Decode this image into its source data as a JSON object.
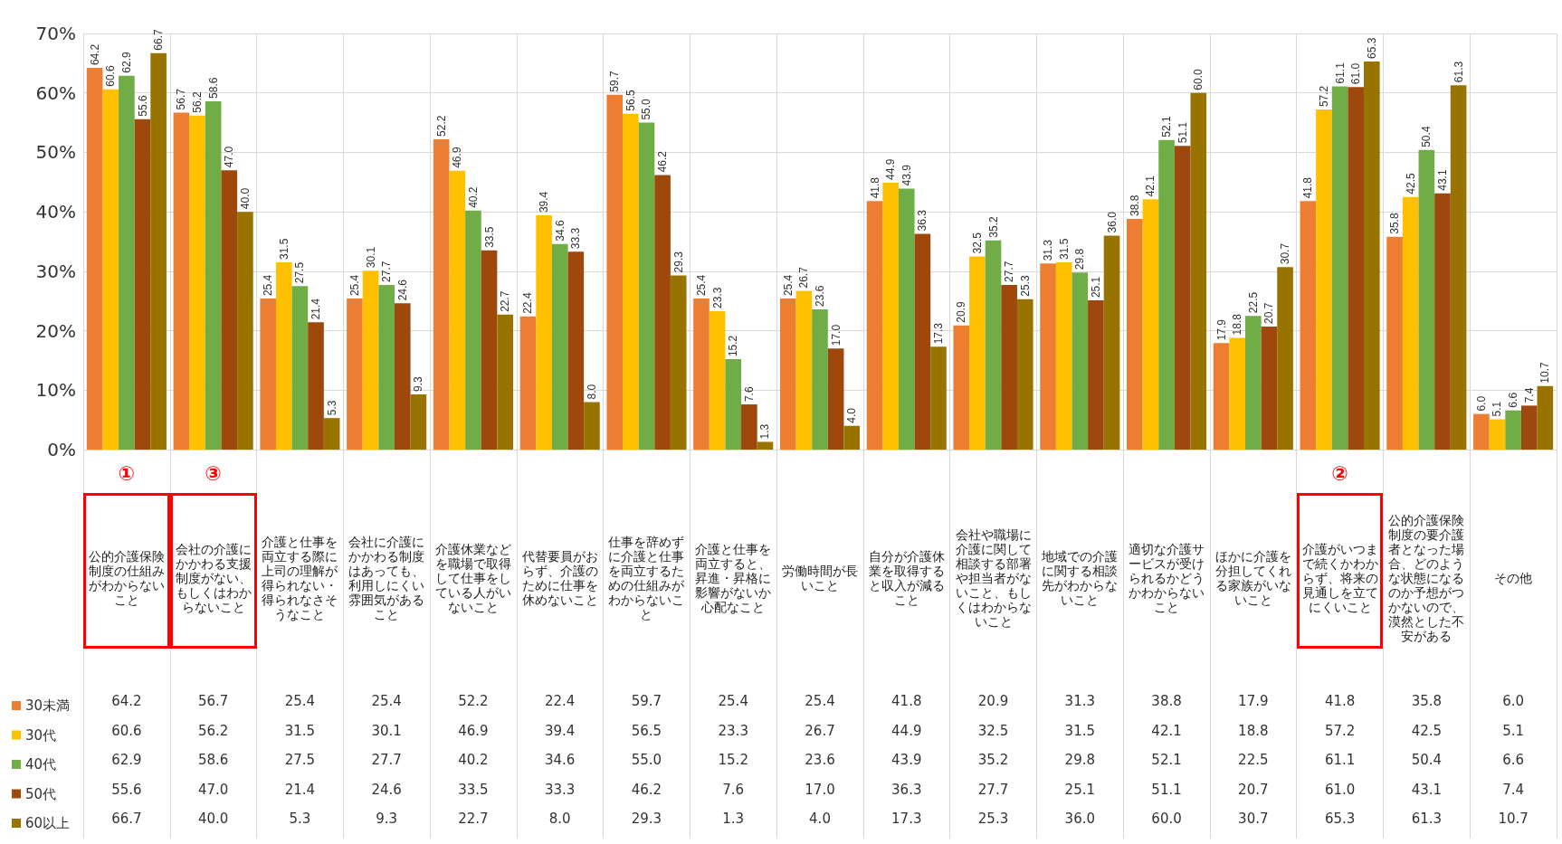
{
  "chart_data": {
    "type": "bar",
    "categories": [
      "公的介護保険制度の仕組みがわからないこと",
      "会社の介護にかかわる支援制度がない、もしくはわからないこと",
      "介護と仕事を両立する際に上司の理解が得られない・得られなさそうなこと",
      "会社に介護にかかわる制度はあっても、利用しにくい雰囲気があること",
      "介護休業などを職場で取得して仕事をしている人がいないこと",
      "代替要員がおらず、介護のために仕事を休めないこと",
      "仕事を辞めずに介護と仕事を両立するための仕組みがわからないこと",
      "介護と仕事を両立すると、昇進・昇格に影響がないか心配なこと",
      "労働時間が長いこと",
      "自分が介護休業を取得すると収入が減ること",
      "会社や職場に介護に関して相談する部署や担当者がないこと、もしくはわからないこと",
      "地域での介護に関する相談先がわからないこと",
      "適切な介護サービスが受けられるかどうかわからないこと",
      "ほかに介護を分担してくれる家族がいないこと",
      "介護がいつまで続くかわからず、将来の見通しを立てにくいこと",
      "公的介護保険制度の要介護者となった場合、どのような状態になるのか予想がつかないので、漠然とした不安がある",
      "その他"
    ],
    "series": [
      {
        "name": "30未満",
        "color": "#ed7d31",
        "values": [
          64.2,
          56.7,
          25.4,
          25.4,
          52.2,
          22.4,
          59.7,
          25.4,
          25.4,
          41.8,
          20.9,
          31.3,
          38.8,
          17.9,
          41.8,
          35.8,
          6.0
        ],
        "value_labels": [
          "64.2",
          "56.7",
          "25.4",
          "25.4",
          "52.2",
          "22.4",
          "59.7",
          "25.4",
          "25.4",
          "41.8",
          "20.9",
          "31.3",
          "38.8",
          "17.9",
          "41.8",
          "35.8",
          "6.0"
        ]
      },
      {
        "name": "30代",
        "color": "#ffc000",
        "values": [
          60.6,
          56.2,
          31.5,
          30.1,
          46.9,
          39.4,
          56.5,
          23.3,
          26.7,
          44.9,
          32.5,
          31.5,
          42.1,
          18.8,
          57.2,
          42.5,
          5.1
        ],
        "value_labels": [
          "60.6",
          "56.2",
          "31.5",
          "30.1",
          "46.9",
          "39.4",
          "56.5",
          "23.3",
          "26.7",
          "44.9",
          "32.5",
          "31.5",
          "42.1",
          "18.8",
          "57.2",
          "42.5",
          "5.1"
        ]
      },
      {
        "name": "40代",
        "color": "#70ad47",
        "values": [
          62.9,
          58.6,
          27.5,
          27.7,
          40.2,
          34.6,
          55.0,
          15.2,
          23.6,
          43.9,
          35.2,
          29.8,
          52.1,
          22.5,
          61.1,
          50.4,
          6.6
        ],
        "value_labels": [
          "62.9",
          "58.6",
          "27.5",
          "27.7",
          "40.2",
          "34.6",
          "55.0",
          "15.2",
          "23.6",
          "43.9",
          "35.2",
          "29.8",
          "52.1",
          "22.5",
          "61.1",
          "50.4",
          "6.6"
        ]
      },
      {
        "name": "50代",
        "color": "#9e480e",
        "values": [
          55.6,
          47.0,
          21.4,
          24.6,
          33.5,
          33.3,
          46.2,
          7.6,
          17.0,
          36.3,
          27.7,
          25.1,
          51.1,
          20.7,
          61.0,
          43.1,
          7.4
        ],
        "value_labels": [
          "55.6",
          "47.0",
          "21.4",
          "24.6",
          "33.5",
          "33.3",
          "46.2",
          "7.6",
          "17.0",
          "36.3",
          "27.7",
          "25.1",
          "51.1",
          "20.7",
          "61.0",
          "43.1",
          "7.4"
        ]
      },
      {
        "name": "60以上",
        "color": "#997300",
        "values": [
          66.7,
          40.0,
          5.3,
          9.3,
          22.7,
          8.0,
          29.3,
          1.3,
          4.0,
          17.3,
          25.3,
          36.0,
          60.0,
          30.7,
          65.3,
          61.3,
          10.7
        ],
        "value_labels": [
          "66.7",
          "40.0",
          "5.3",
          "9.3",
          "22.7",
          "8.0",
          "29.3",
          "1.3",
          "4.0",
          "17.3",
          "25.3",
          "36.0",
          "60.0",
          "30.7",
          "65.3",
          "61.3",
          "10.7"
        ]
      }
    ],
    "ylim": [
      0,
      70
    ],
    "yticks": [
      {
        "value": 0,
        "label": "0%"
      },
      {
        "value": 10,
        "label": "10%"
      },
      {
        "value": 20,
        "label": "20%"
      },
      {
        "value": 30,
        "label": "30%"
      },
      {
        "value": 40,
        "label": "40%"
      },
      {
        "value": 50,
        "label": "50%"
      },
      {
        "value": 60,
        "label": "60%"
      },
      {
        "value": 70,
        "label": "70%"
      }
    ],
    "annotations": [
      "①",
      "③",
      "②"
    ],
    "grid": true,
    "legend": "bottom left"
  }
}
